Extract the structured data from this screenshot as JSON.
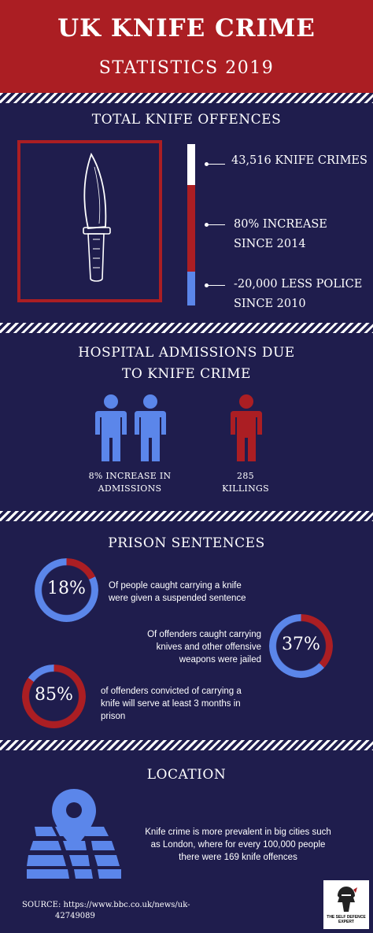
{
  "header": {
    "title": "UK KNIFE CRIME",
    "subtitle": "STATISTICS 2019"
  },
  "offences": {
    "title": "TOTAL KNIFE OFFENCES",
    "stats": [
      {
        "line1": "43,516 KNIFE CRIMES",
        "line2": ""
      },
      {
        "line1": "80% INCREASE",
        "line2": "SINCE 2014"
      },
      {
        "line1": "-20,000 LESS POLICE",
        "line2": "SINCE 2010"
      }
    ]
  },
  "hospital": {
    "title_line1": "HOSPITAL ADMISSIONS DUE",
    "title_line2": "TO KNIFE CRIME",
    "admissions_line1": "8% INCREASE IN",
    "admissions_line2": "ADMISSIONS",
    "killings_line1": "285",
    "killings_line2": "KILLINGS"
  },
  "prison": {
    "title": "PRISON SENTENCES",
    "items": [
      {
        "percent": "18%",
        "value": 18,
        "desc_line1": "Of people caught carrying a knife",
        "desc_line2": "were given a suspended sentence",
        "desc_line3": ""
      },
      {
        "percent": "37%",
        "value": 37,
        "desc_line1": "Of offenders caught carrying",
        "desc_line2": "knives and other offensive",
        "desc_line3": "weapons were jailed"
      },
      {
        "percent": "85%",
        "value": 85,
        "desc_line1": "of offenders convicted of carrying a",
        "desc_line2": "knife will serve at least 3 months in",
        "desc_line3": "prison"
      }
    ]
  },
  "location": {
    "title": "LOCATION",
    "text_line1": "Knife crime is more prevalent in big cities such",
    "text_line2": "as London, where for every 100,000 people",
    "text_line3": "there were 169 knife offences"
  },
  "source": {
    "line1": "SOURCE:  https://www.bbc.co.uk/news/uk-",
    "line2": "42749089"
  },
  "logo": {
    "line1": "THE SELF DEFENCE",
    "line2": "EXPERT"
  },
  "colors": {
    "background": "#1f1d4d",
    "red": "#ab1e23",
    "blue": "#5b86ea",
    "white": "#ffffff"
  },
  "icons": [
    "knife-icon",
    "person-icon",
    "map-pin-icon",
    "map-icon"
  ]
}
